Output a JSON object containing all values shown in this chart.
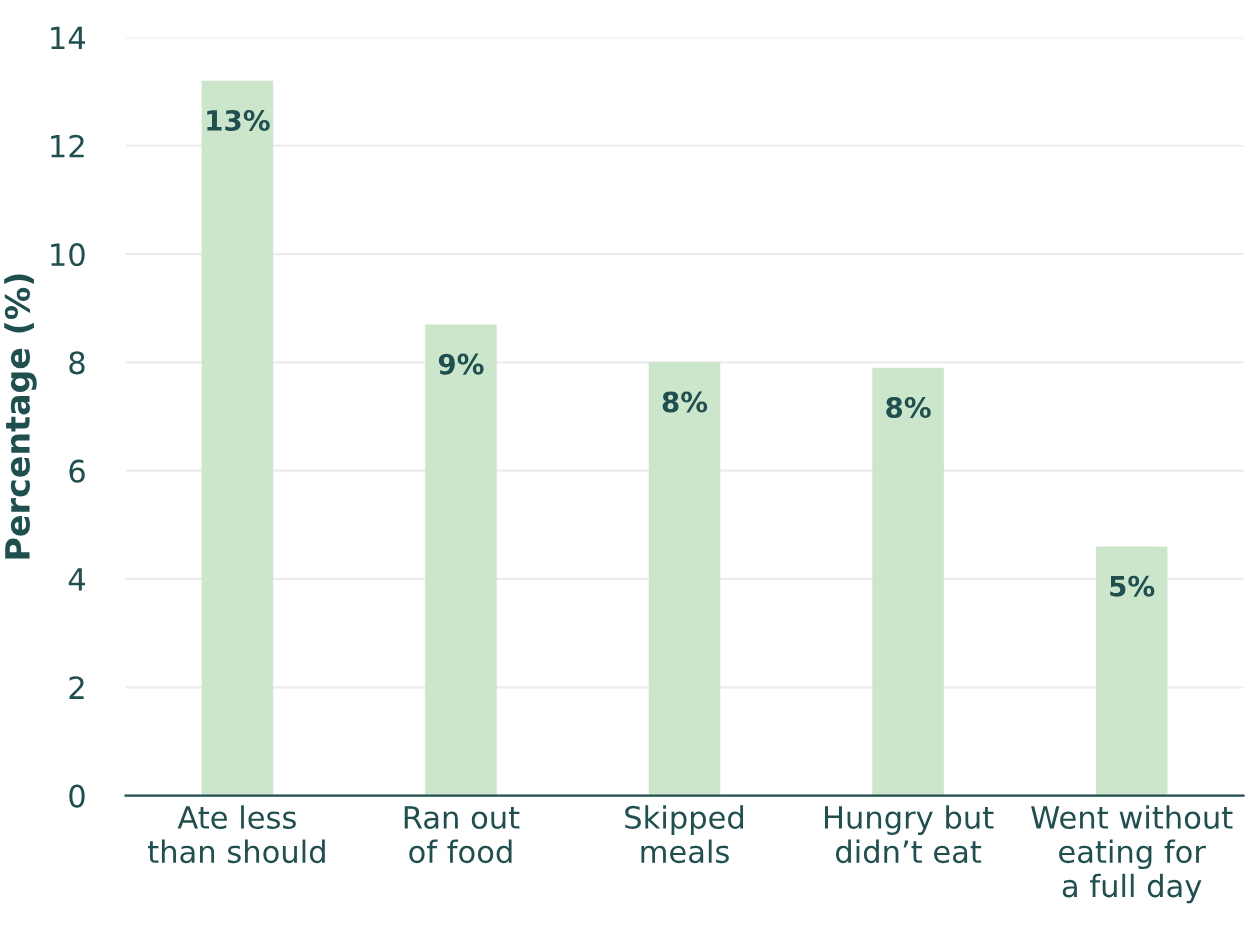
{
  "chart_data": {
    "type": "bar",
    "ylabel": "Percentage (%)",
    "categories": [
      "Ate less\nthan should",
      "Ran out\nof food",
      "Skipped\nmeals",
      "Hungry but\ndidn’t eat",
      "Went without\neating for\na full day"
    ],
    "values": [
      13.2,
      8.7,
      8.0,
      7.9,
      4.6
    ],
    "value_labels": [
      "13%",
      "9%",
      "8%",
      "8%",
      "5%"
    ],
    "color": "#cce6cc",
    "ylim": [
      0,
      14
    ],
    "yticks": [
      0,
      2,
      4,
      6,
      8,
      10,
      12,
      14
    ],
    "grid": "y",
    "legend": false
  }
}
